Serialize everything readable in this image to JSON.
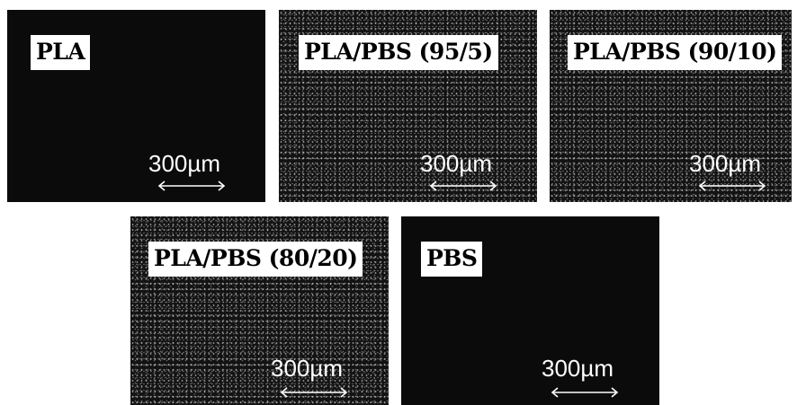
{
  "panels": [
    {
      "label": "PLA",
      "scale_text": "300µm"
    },
    {
      "label": "PLA/PBS (95/5)",
      "scale_text": "300µm"
    },
    {
      "label": "PLA/PBS (90/10)",
      "scale_text": "300µm"
    },
    {
      "label": "PLA/PBS (80/20)",
      "scale_text": "300µm"
    },
    {
      "label": "PBS",
      "scale_text": "300µm"
    }
  ]
}
